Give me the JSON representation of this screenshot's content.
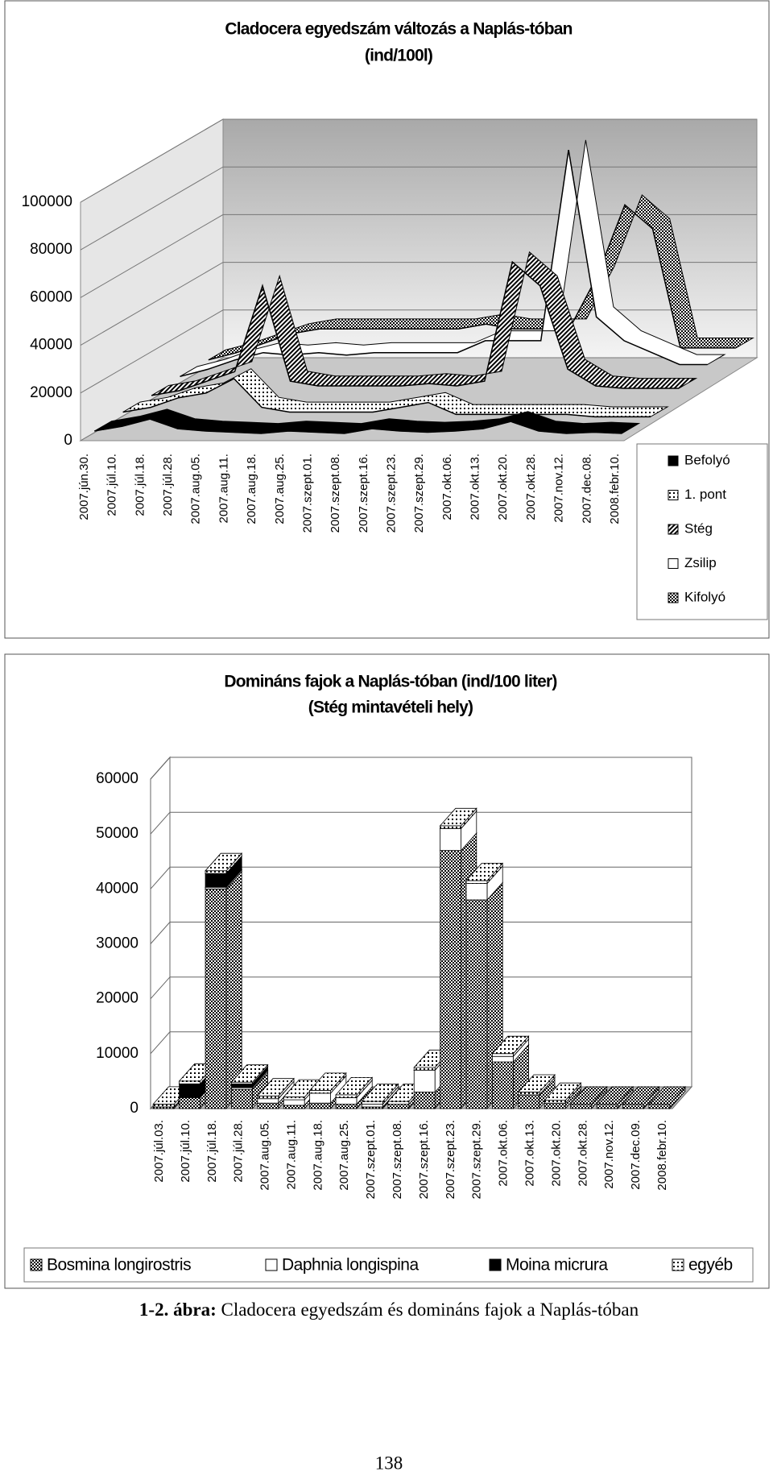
{
  "chart_data": [
    {
      "type": "line",
      "three_d": true,
      "title": [
        "Cladocera egyedszám változás a Naplás-tóban",
        "(ind/100l)"
      ],
      "categories": [
        "2007.jún.30.",
        "2007.júl.10.",
        "2007.júl.18.",
        "2007.júl.28.",
        "2007.aug.05.",
        "2007.aug.11.",
        "2007.aug.18.",
        "2007.aug.25.",
        "2007.szept.01.",
        "2007.szept.08.",
        "2007.szept.16.",
        "2007.szept.23.",
        "2007.szept.29.",
        "2007.okt.06.",
        "2007.okt.13.",
        "2007.okt.20.",
        "2007.okt.28.",
        "2007.nov.12.",
        "2007.dec.08.",
        "2008.febr.10."
      ],
      "series": [
        {
          "name": "Befolyó",
          "pattern": "black",
          "values": [
            3000,
            5000,
            8000,
            4000,
            3000,
            2500,
            2000,
            3000,
            2500,
            2000,
            4000,
            3000,
            2500,
            3000,
            4000,
            7000,
            3000,
            2000,
            2500,
            2000
          ]
        },
        {
          "name": "1. pont",
          "pattern": "dots",
          "values": [
            4000,
            6000,
            10000,
            12000,
            18000,
            6000,
            4000,
            4000,
            4000,
            4000,
            6000,
            8000,
            3000,
            3000,
            3000,
            3000,
            3000,
            2000,
            2000,
            2000
          ]
        },
        {
          "name": "Stég",
          "pattern": "hatch",
          "values": [
            4000,
            6000,
            10000,
            14000,
            50000,
            10000,
            8000,
            8000,
            8000,
            8000,
            9000,
            8000,
            10000,
            60000,
            50000,
            15000,
            8000,
            7000,
            7000,
            7000
          ]
        },
        {
          "name": "Zsilip",
          "pattern": "white",
          "values": [
            5000,
            8000,
            12000,
            15000,
            14000,
            15000,
            14000,
            15000,
            15000,
            15000,
            15000,
            20000,
            20000,
            20000,
            100000,
            30000,
            20000,
            15000,
            10000,
            10000
          ]
        },
        {
          "name": "Kifolyó",
          "pattern": "checker",
          "values": [
            5000,
            8000,
            12000,
            16000,
            18000,
            18000,
            18000,
            18000,
            18000,
            18000,
            20000,
            18000,
            18000,
            18000,
            40000,
            70000,
            60000,
            10000,
            10000,
            10000
          ]
        }
      ],
      "ylim": [
        0,
        100000
      ],
      "yticks": [
        0,
        20000,
        40000,
        60000,
        80000,
        100000
      ],
      "grid": true,
      "legend": "right"
    },
    {
      "type": "bar",
      "stacked": true,
      "three_d": true,
      "title": [
        "Domináns fajok a Naplás-tóban (ind/100 liter)",
        "(Stég mintavételi hely)"
      ],
      "categories": [
        "2007.júl.03.",
        "2007.júl.10.",
        "2007.júl.18.",
        "2007.júl.28.",
        "2007.aug.05.",
        "2007.aug.11.",
        "2007.aug.18.",
        "2007.aug.25.",
        "2007.szept.01.",
        "2007.szept.08.",
        "2007.szept.16.",
        "2007.szept.23.",
        "2007.szept.29.",
        "2007.okt.06.",
        "2007.okt.13.",
        "2007.okt.20.",
        "2007.okt.28.",
        "2007.nov.12.",
        "2007.dec.09.",
        "2008.febr.10."
      ],
      "series": [
        {
          "name": "Bosmina longirostris",
          "pattern": "checker",
          "values": [
            300,
            2000,
            40000,
            3500,
            1000,
            600,
            1000,
            800,
            300,
            800,
            3000,
            47000,
            38000,
            8500,
            2500,
            1000,
            800,
            800,
            800,
            800
          ]
        },
        {
          "name": "Daphnia longispina",
          "pattern": "white",
          "values": [
            0,
            0,
            300,
            300,
            800,
            1000,
            1800,
            1200,
            500,
            0,
            4000,
            4000,
            3000,
            1000,
            0,
            0,
            0,
            0,
            0,
            0
          ]
        },
        {
          "name": "Moina micrura",
          "pattern": "black",
          "values": [
            0,
            2500,
            2500,
            700,
            0,
            0,
            0,
            0,
            0,
            0,
            0,
            0,
            0,
            0,
            0,
            0,
            0,
            0,
            0,
            0
          ]
        },
        {
          "name": "egyéb",
          "pattern": "dots",
          "values": [
            500,
            500,
            500,
            300,
            500,
            500,
            500,
            500,
            500,
            500,
            500,
            500,
            500,
            500,
            500,
            500,
            0,
            0,
            0,
            0
          ]
        }
      ],
      "ylim": [
        0,
        60000
      ],
      "yticks": [
        0,
        10000,
        20000,
        30000,
        40000,
        50000,
        60000
      ],
      "grid": true,
      "legend": "bottom"
    }
  ],
  "caption_label": "1-2. ábra:",
  "caption_text": "Cladocera egyedszám és domináns fajok a Naplás-tóban",
  "page_number": "138"
}
